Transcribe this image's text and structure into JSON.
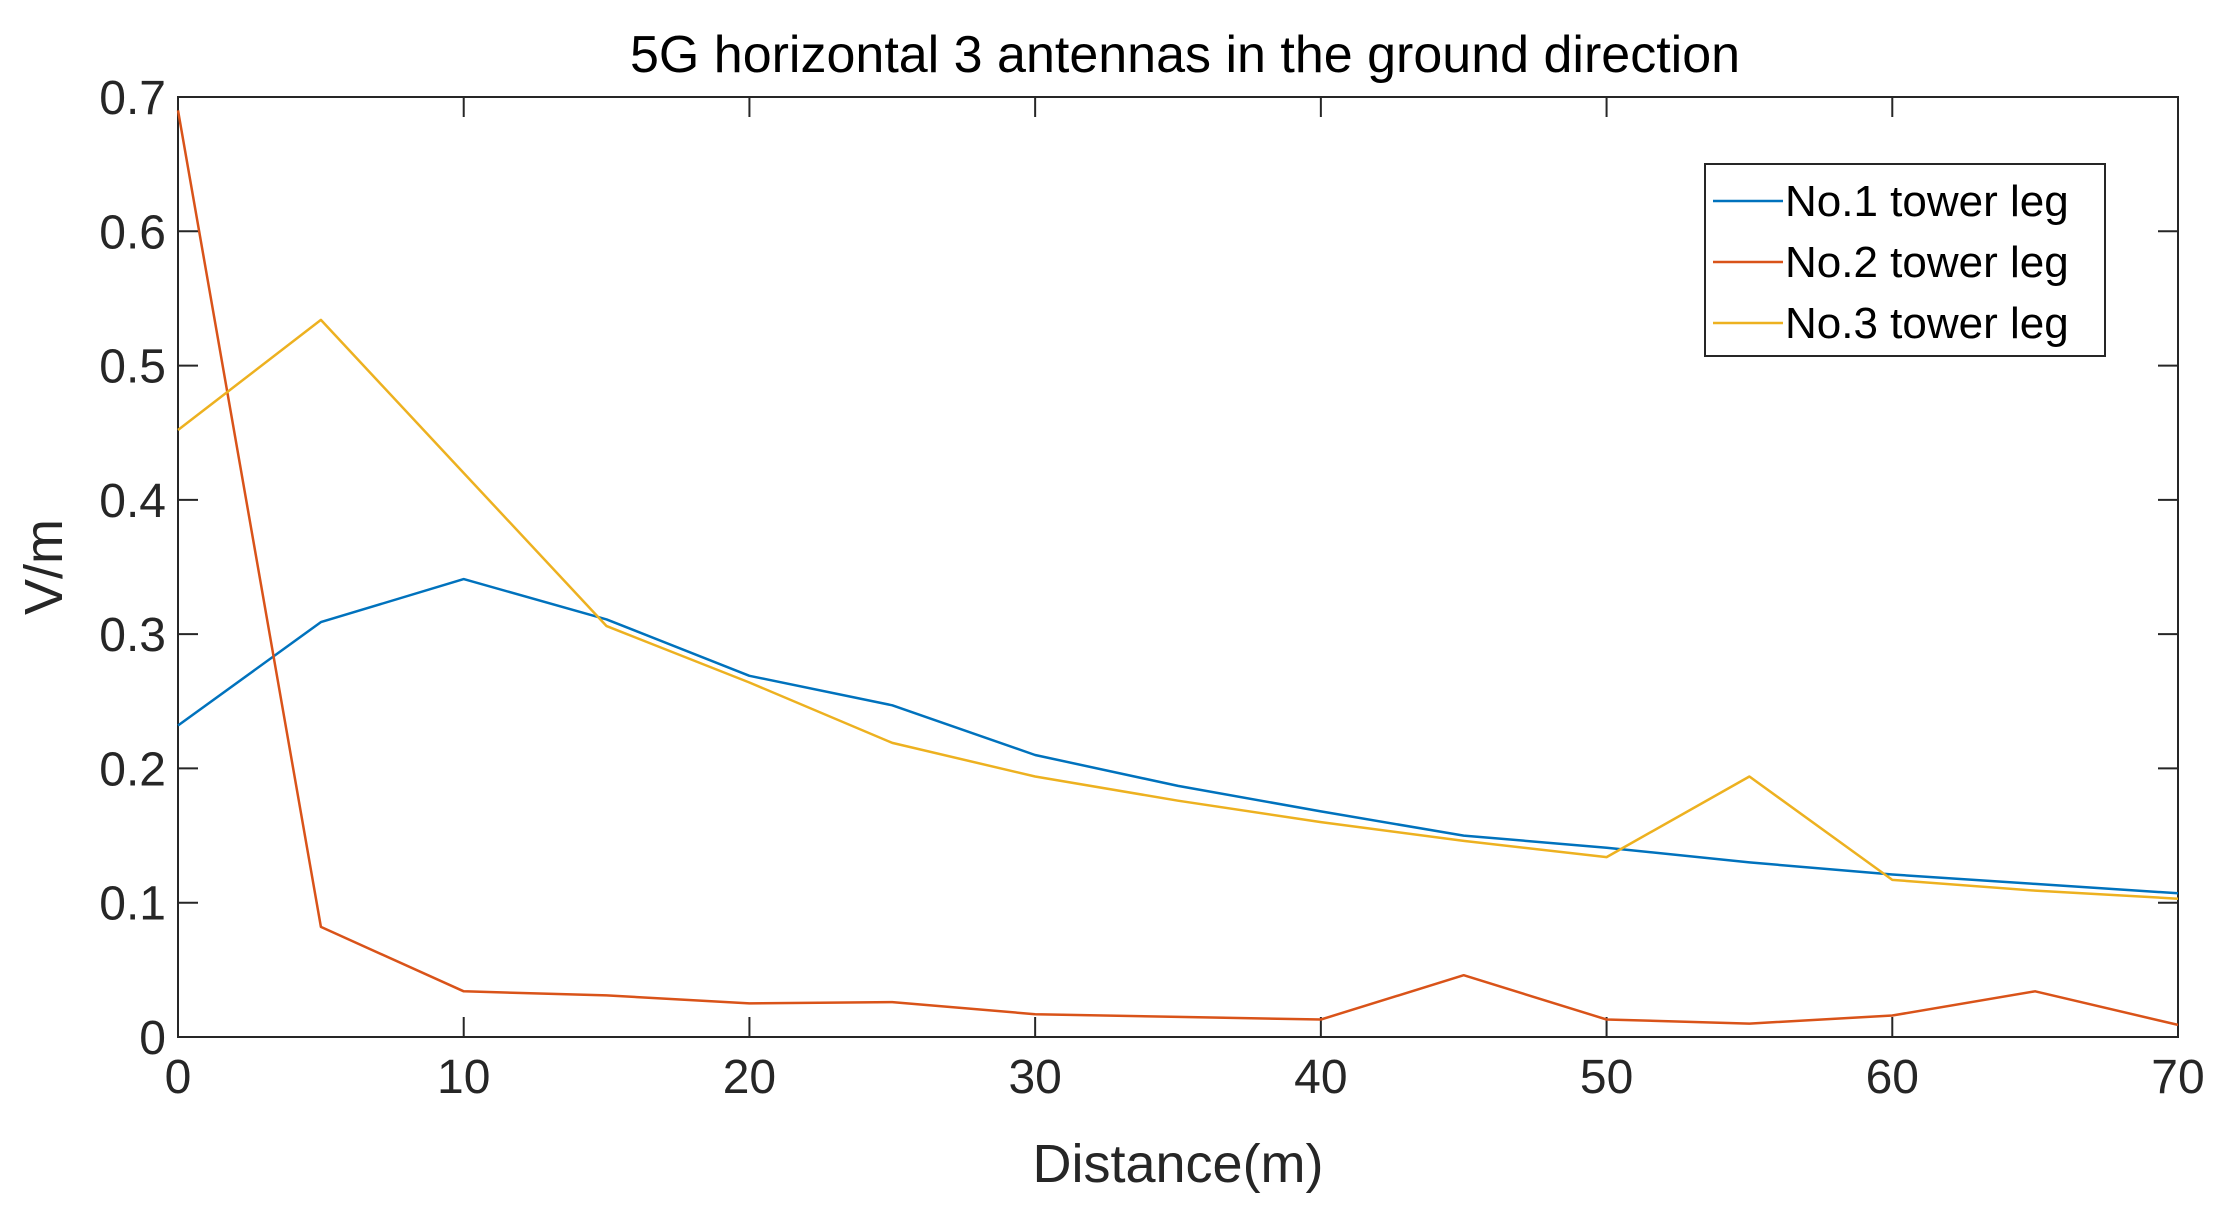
{
  "chart_data": {
    "type": "line",
    "title": "5G horizontal 3 antennas in the ground direction",
    "xlabel": "Distance(m)",
    "ylabel": "V/m",
    "xlim": [
      0,
      70
    ],
    "ylim": [
      0,
      0.7
    ],
    "xticks": [
      "0",
      "10",
      "20",
      "30",
      "40",
      "50",
      "60",
      "70"
    ],
    "yticks": [
      "0",
      "0.1",
      "0.2",
      "0.3",
      "0.4",
      "0.5",
      "0.6",
      "0.7"
    ],
    "grid": false,
    "legend_position": "top-right",
    "x": [
      0,
      5,
      10,
      15,
      20,
      25,
      30,
      35,
      40,
      45,
      50,
      55,
      60,
      65,
      70
    ],
    "series": [
      {
        "name": "No.1 tower leg",
        "color": "#0072BD",
        "values": [
          0.232,
          0.309,
          0.341,
          0.311,
          0.269,
          0.247,
          0.21,
          0.187,
          0.168,
          0.15,
          0.141,
          0.13,
          0.121,
          0.114,
          0.107
        ]
      },
      {
        "name": "No.2 tower leg",
        "color": "#D95319",
        "values": [
          0.69,
          0.082,
          0.034,
          0.031,
          0.025,
          0.026,
          0.017,
          0.015,
          0.013,
          0.046,
          0.013,
          0.01,
          0.016,
          0.034,
          0.009
        ]
      },
      {
        "name": "No.3 tower leg",
        "color": "#EDB120",
        "values": [
          0.452,
          0.534,
          0.42,
          0.306,
          0.264,
          0.219,
          0.194,
          0.176,
          0.16,
          0.146,
          0.134,
          0.194,
          0.117,
          0.109,
          0.103
        ]
      }
    ]
  }
}
